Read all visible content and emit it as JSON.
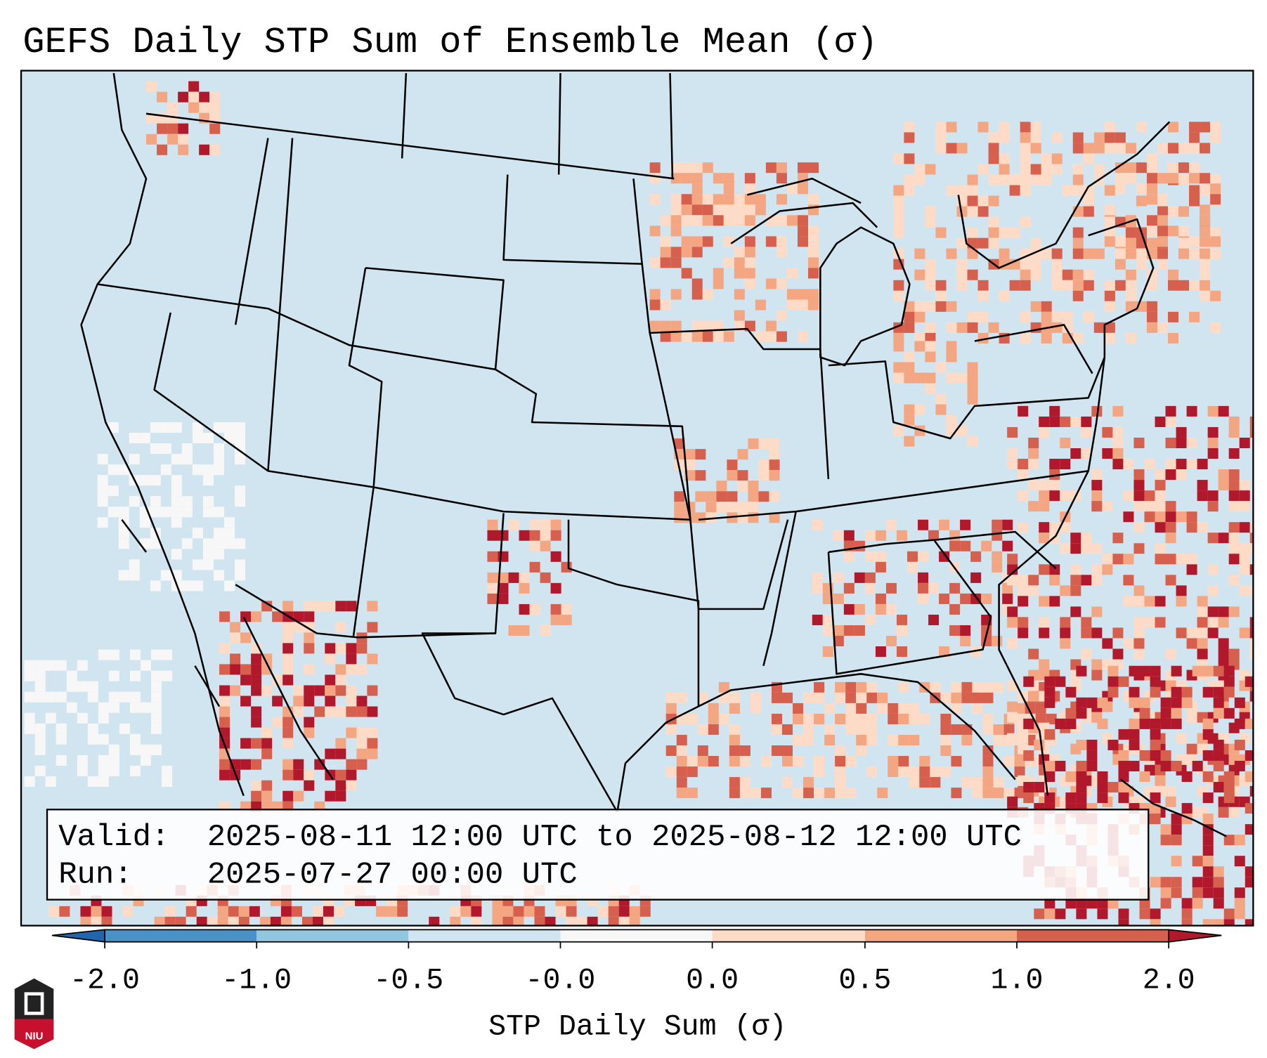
{
  "title": "GEFS Daily STP Sum of Ensemble Mean (σ)",
  "info_box": {
    "valid_label": "Valid:",
    "valid_value": "2025-08-11 12:00 UTC to 2025-08-12 12:00 UTC",
    "run_label": "Run:",
    "run_value": "2025-07-27 00:00 UTC"
  },
  "colorbar": {
    "label": "STP Daily Sum (σ)",
    "ticks": [
      "-2.0",
      "-1.0",
      "-0.5",
      "-0.0",
      "0.0",
      "0.5",
      "1.0",
      "2.0"
    ],
    "colors": [
      "#4a91c6",
      "#92c5de",
      "#d1e5f0",
      "#f7f7f7",
      "#fddbc7",
      "#f4a582",
      "#d6604d"
    ],
    "under_color": "#2166ac",
    "over_color": "#b2182b"
  },
  "map": {
    "background_color": "#d1e5f0",
    "line_color": "#000000"
  },
  "logo": {
    "text": "NIU"
  }
}
